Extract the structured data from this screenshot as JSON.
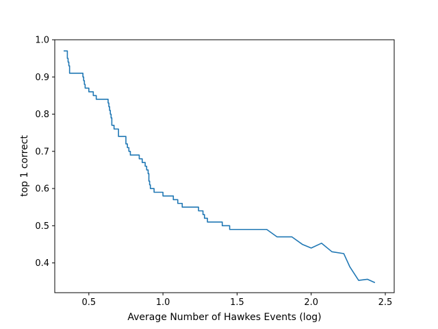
{
  "chart_data": {
    "type": "line",
    "title": "",
    "xlabel": "Average Number of Hawkes Events (log)",
    "ylabel": "top 1 correct",
    "xlim": [
      0.27,
      2.56
    ],
    "ylim": [
      0.32,
      1.0
    ],
    "xticks": [
      "0.5",
      "1.0",
      "1.5",
      "2.0",
      "2.5"
    ],
    "xtick_values": [
      0.5,
      1.0,
      1.5,
      2.0,
      2.5
    ],
    "yticks": [
      "0.4",
      "0.5",
      "0.6",
      "0.7",
      "0.8",
      "0.9",
      "1.0"
    ],
    "ytick_values": [
      0.4,
      0.5,
      0.6,
      0.7,
      0.8,
      0.9,
      1.0
    ],
    "grid": false,
    "line_color": "#1f77b4",
    "series": [
      {
        "x": [
          0.33,
          0.355,
          0.355,
          0.36,
          0.36,
          0.365,
          0.365,
          0.37,
          0.37,
          0.46,
          0.46,
          0.465,
          0.465,
          0.47,
          0.47,
          0.475,
          0.475,
          0.5,
          0.5,
          0.51,
          0.51,
          0.53,
          0.53,
          0.55,
          0.55,
          0.63,
          0.63,
          0.635,
          0.635,
          0.64,
          0.64,
          0.645,
          0.645,
          0.65,
          0.65,
          0.655,
          0.655,
          0.67,
          0.67,
          0.68,
          0.68,
          0.7,
          0.7,
          0.72,
          0.72,
          0.75,
          0.75,
          0.76,
          0.76,
          0.77,
          0.77,
          0.78,
          0.78,
          0.79,
          0.79,
          0.84,
          0.84,
          0.86,
          0.86,
          0.88,
          0.88,
          0.89,
          0.89,
          0.9,
          0.9,
          0.905,
          0.905,
          0.91,
          0.91,
          0.915,
          0.915,
          0.92,
          0.92,
          0.94,
          0.94,
          1.0,
          1.0,
          1.07,
          1.07,
          1.1,
          1.1,
          1.13,
          1.13,
          1.2,
          1.2,
          1.24,
          1.24,
          1.26,
          1.26,
          1.27,
          1.27,
          1.28,
          1.28,
          1.3,
          1.3,
          1.37,
          1.37,
          1.4,
          1.4,
          1.42,
          1.42,
          1.45,
          1.45,
          1.7,
          1.77,
          1.87,
          1.94,
          2.0,
          2.07,
          2.14,
          2.22,
          2.26,
          2.32,
          2.38,
          2.43
        ],
        "values": [
          0.97,
          0.97,
          0.95,
          0.95,
          0.94,
          0.94,
          0.93,
          0.93,
          0.91,
          0.91,
          0.9,
          0.9,
          0.89,
          0.89,
          0.88,
          0.88,
          0.87,
          0.87,
          0.86,
          0.86,
          0.86,
          0.86,
          0.85,
          0.85,
          0.84,
          0.84,
          0.83,
          0.83,
          0.82,
          0.82,
          0.81,
          0.81,
          0.8,
          0.8,
          0.79,
          0.79,
          0.77,
          0.77,
          0.76,
          0.76,
          0.76,
          0.76,
          0.74,
          0.74,
          0.74,
          0.74,
          0.72,
          0.72,
          0.71,
          0.71,
          0.7,
          0.7,
          0.69,
          0.69,
          0.69,
          0.69,
          0.68,
          0.68,
          0.67,
          0.67,
          0.66,
          0.66,
          0.65,
          0.65,
          0.64,
          0.64,
          0.62,
          0.62,
          0.61,
          0.61,
          0.6,
          0.6,
          0.6,
          0.6,
          0.59,
          0.59,
          0.58,
          0.58,
          0.57,
          0.57,
          0.56,
          0.56,
          0.55,
          0.55,
          0.55,
          0.55,
          0.54,
          0.54,
          0.54,
          0.54,
          0.53,
          0.53,
          0.52,
          0.52,
          0.51,
          0.51,
          0.51,
          0.51,
          0.5,
          0.5,
          0.5,
          0.5,
          0.49,
          0.49,
          0.47,
          0.47,
          0.45,
          0.44,
          0.453,
          0.43,
          0.425,
          0.39,
          0.353,
          0.356,
          0.347
        ]
      }
    ]
  }
}
